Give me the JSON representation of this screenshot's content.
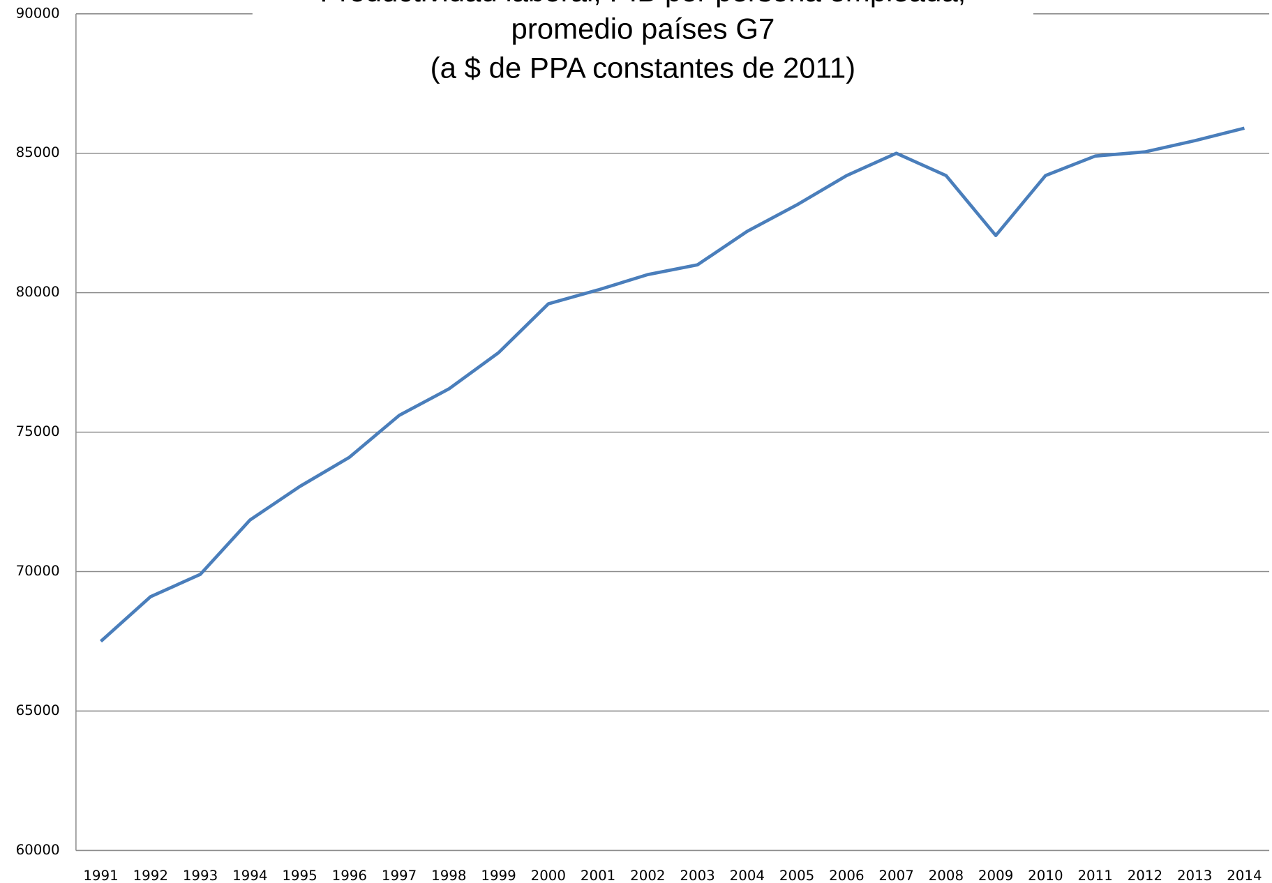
{
  "chart_data": {
    "type": "line",
    "title": [
      "Productividad laboral, PIB por persona empleada,",
      "promedio países G7",
      "(a $ de PPA constantes de 2011)"
    ],
    "categories": [
      "1991",
      "1992",
      "1993",
      "1994",
      "1995",
      "1996",
      "1997",
      "1998",
      "1999",
      "2000",
      "2001",
      "2002",
      "2003",
      "2004",
      "2005",
      "2006",
      "2007",
      "2008",
      "2009",
      "2010",
      "2011",
      "2012",
      "2013",
      "2014"
    ],
    "series": [
      {
        "color": "#4a7ebb",
        "values": [
          67500,
          69100,
          69900,
          71850,
          73050,
          74100,
          75600,
          76550,
          77850,
          79600,
          80100,
          80650,
          81000,
          82200,
          83150,
          84200,
          85000,
          84200,
          82050,
          84200,
          84900,
          85050,
          85450,
          85900
        ]
      }
    ],
    "ylim": [
      60000,
      90000
    ],
    "yticks": [
      60000,
      65000,
      70000,
      75000,
      80000,
      85000,
      90000
    ],
    "grid": true
  }
}
